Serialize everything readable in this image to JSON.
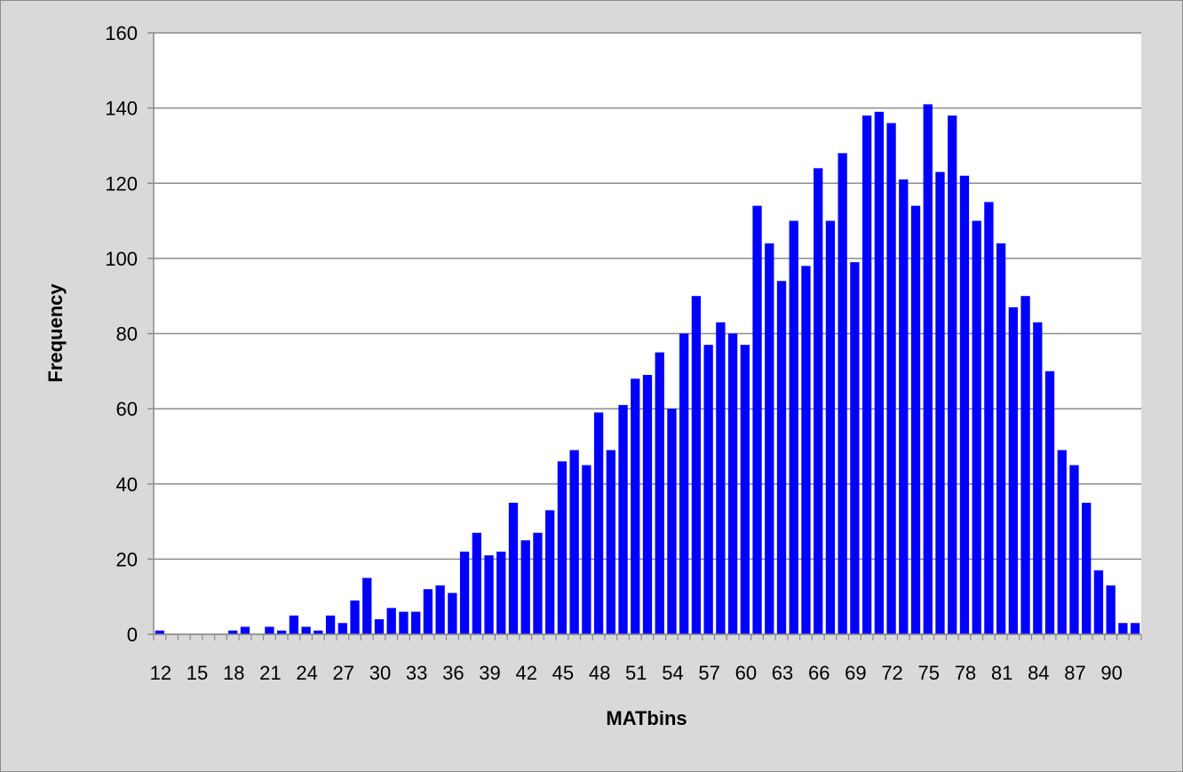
{
  "chart_data": {
    "type": "bar",
    "title": "",
    "xlabel": "MATbins",
    "ylabel": "Frequency",
    "ylim": [
      0,
      160
    ],
    "yticks": [
      0,
      20,
      40,
      60,
      80,
      100,
      120,
      140,
      160
    ],
    "grid": true,
    "legend": "none",
    "bar_color": "#0000ff",
    "plot_background": "#ffffff",
    "chart_background": "#d9d9d9",
    "categories": [
      12,
      13,
      14,
      15,
      16,
      17,
      18,
      19,
      20,
      21,
      22,
      23,
      24,
      25,
      26,
      27,
      28,
      29,
      30,
      31,
      32,
      33,
      34,
      35,
      36,
      37,
      38,
      39,
      40,
      41,
      42,
      43,
      44,
      45,
      46,
      47,
      48,
      49,
      50,
      51,
      52,
      53,
      54,
      55,
      56,
      57,
      58,
      59,
      60,
      61,
      62,
      63,
      64,
      65,
      66,
      67,
      68,
      69,
      70,
      71,
      72,
      73,
      74,
      75,
      76,
      77,
      78,
      79,
      80,
      81,
      82,
      83,
      84,
      85,
      86,
      87,
      88,
      89,
      90,
      91,
      92
    ],
    "tick_labels": [
      "12",
      "15",
      "18",
      "21",
      "24",
      "27",
      "30",
      "33",
      "36",
      "39",
      "42",
      "45",
      "48",
      "51",
      "54",
      "57",
      "60",
      "63",
      "66",
      "69",
      "72",
      "75",
      "78",
      "81",
      "84",
      "87",
      "90"
    ],
    "values": [
      1,
      0,
      0,
      0,
      0,
      0,
      1,
      2,
      0,
      2,
      1,
      5,
      2,
      1,
      5,
      3,
      9,
      15,
      4,
      7,
      6,
      6,
      12,
      13,
      11,
      22,
      27,
      21,
      22,
      35,
      25,
      27,
      33,
      46,
      49,
      45,
      59,
      49,
      61,
      68,
      69,
      75,
      60,
      80,
      90,
      77,
      83,
      80,
      77,
      114,
      104,
      94,
      110,
      98,
      124,
      110,
      128,
      99,
      138,
      139,
      136,
      121,
      114,
      141,
      123,
      138,
      122,
      110,
      115,
      104,
      87,
      90,
      83,
      70,
      49,
      45,
      35,
      17,
      13,
      3,
      3
    ]
  }
}
